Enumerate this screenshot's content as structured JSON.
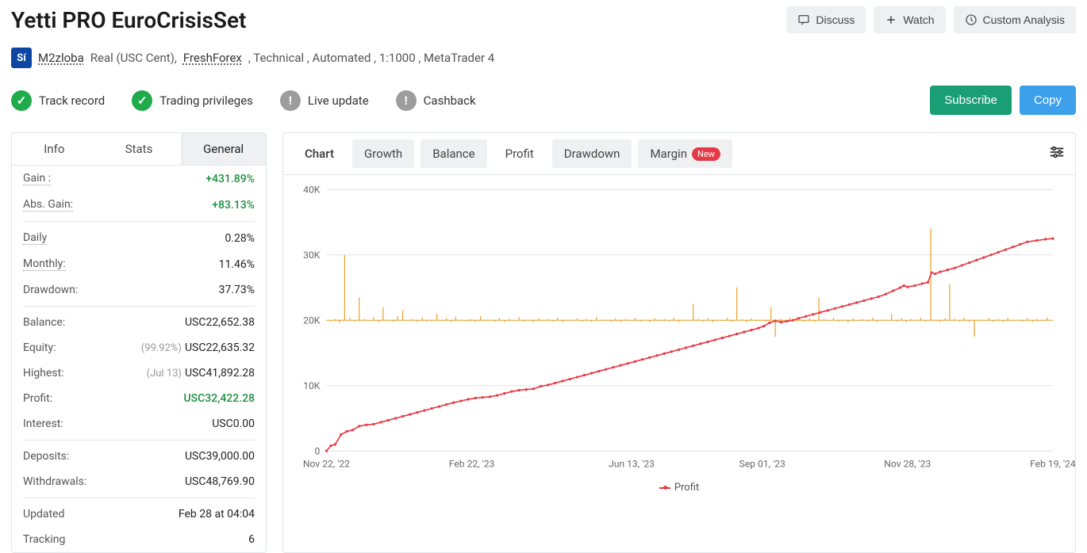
{
  "title": "Yetti PRO EuroCrisisSet",
  "header_buttons": {
    "discuss": "Discuss",
    "watch": "Watch",
    "custom": "Custom Analysis"
  },
  "meta": {
    "user": "M2zloba",
    "account_type": "Real (USC Cent),",
    "broker": "FreshForex",
    "tail": ", Technical , Automated , 1:1000 , MetaTrader 4"
  },
  "status": {
    "track": "Track record",
    "priv": "Trading privileges",
    "live": "Live update",
    "cash": "Cashback"
  },
  "actions": {
    "subscribe": "Subscribe",
    "copy": "Copy"
  },
  "side_tabs": {
    "info": "Info",
    "stats": "Stats",
    "general": "General"
  },
  "stats": {
    "gain_l": "Gain :",
    "gain_v": "+431.89%",
    "abs_l": "Abs. Gain:",
    "abs_v": "+83.13%",
    "daily_l": "Daily",
    "daily_v": "0.28%",
    "monthly_l": "Monthly:",
    "monthly_v": "11.46%",
    "dd_l": "Drawdown:",
    "dd_v": "37.73%",
    "bal_l": "Balance:",
    "bal_v": "USC22,652.38",
    "eq_l": "Equity:",
    "eq_note": "(99.92%)",
    "eq_v": "USC22,635.32",
    "hi_l": "Highest:",
    "hi_note": "(Jul 13)",
    "hi_v": "USC41,892.28",
    "profit_l": "Profit:",
    "profit_v": "USC32,422.28",
    "int_l": "Interest:",
    "int_v": "USC0.00",
    "dep_l": "Deposits:",
    "dep_v": "USC39,000.00",
    "wd_l": "Withdrawals:",
    "wd_v": "USC48,769.90",
    "upd_l": "Updated",
    "upd_v": "Feb 28 at 04:04",
    "trk_l": "Tracking",
    "trk_v": "6"
  },
  "chart_tabs": {
    "chart": "Chart",
    "growth": "Growth",
    "balance": "Balance",
    "profit": "Profit",
    "drawdown": "Drawdown",
    "margin": "Margin",
    "new": "New"
  },
  "chart": {
    "ylim": [
      0,
      40000
    ],
    "ytick_step": 10000,
    "yticks": [
      "0",
      "10K",
      "20K",
      "30K",
      "40K"
    ],
    "xticks": [
      "Nov 22, '22",
      "Feb 22, '23",
      "Jun 13, '23",
      "Sep 01, '23",
      "Nov 28, '23",
      "Feb 19, '24"
    ],
    "x_positions": [
      0,
      0.2,
      0.42,
      0.6,
      0.8,
      1.0
    ],
    "profit_color": "#e63946",
    "equity_color": "#e9a227",
    "grid_color": "#e1e1e1",
    "axis_color": "#888",
    "background": "#ffffff",
    "legend_label": "Profit",
    "profit_series": [
      [
        0.0,
        0
      ],
      [
        0.006,
        800
      ],
      [
        0.012,
        1000
      ],
      [
        0.02,
        2500
      ],
      [
        0.028,
        3000
      ],
      [
        0.036,
        3200
      ],
      [
        0.045,
        3800
      ],
      [
        0.055,
        4000
      ],
      [
        0.065,
        4100
      ],
      [
        0.075,
        4400
      ],
      [
        0.085,
        4700
      ],
      [
        0.095,
        5000
      ],
      [
        0.105,
        5300
      ],
      [
        0.115,
        5600
      ],
      [
        0.125,
        5900
      ],
      [
        0.135,
        6200
      ],
      [
        0.145,
        6500
      ],
      [
        0.155,
        6800
      ],
      [
        0.165,
        7100
      ],
      [
        0.175,
        7400
      ],
      [
        0.185,
        7650
      ],
      [
        0.195,
        7900
      ],
      [
        0.205,
        8100
      ],
      [
        0.215,
        8200
      ],
      [
        0.225,
        8300
      ],
      [
        0.235,
        8500
      ],
      [
        0.245,
        8800
      ],
      [
        0.255,
        9100
      ],
      [
        0.265,
        9300
      ],
      [
        0.275,
        9400
      ],
      [
        0.285,
        9500
      ],
      [
        0.295,
        9900
      ],
      [
        0.305,
        10100
      ],
      [
        0.315,
        10400
      ],
      [
        0.325,
        10700
      ],
      [
        0.335,
        11000
      ],
      [
        0.345,
        11300
      ],
      [
        0.355,
        11600
      ],
      [
        0.365,
        11900
      ],
      [
        0.375,
        12200
      ],
      [
        0.385,
        12500
      ],
      [
        0.395,
        12800
      ],
      [
        0.405,
        13100
      ],
      [
        0.415,
        13400
      ],
      [
        0.425,
        13700
      ],
      [
        0.435,
        14000
      ],
      [
        0.445,
        14300
      ],
      [
        0.455,
        14600
      ],
      [
        0.465,
        14900
      ],
      [
        0.475,
        15200
      ],
      [
        0.485,
        15500
      ],
      [
        0.495,
        15800
      ],
      [
        0.505,
        16100
      ],
      [
        0.515,
        16400
      ],
      [
        0.525,
        16700
      ],
      [
        0.535,
        17000
      ],
      [
        0.545,
        17300
      ],
      [
        0.555,
        17600
      ],
      [
        0.565,
        17900
      ],
      [
        0.575,
        18200
      ],
      [
        0.585,
        18500
      ],
      [
        0.595,
        18800
      ],
      [
        0.602,
        19100
      ],
      [
        0.61,
        19600
      ],
      [
        0.618,
        19900
      ],
      [
        0.626,
        19700
      ],
      [
        0.634,
        19850
      ],
      [
        0.642,
        20000
      ],
      [
        0.65,
        20300
      ],
      [
        0.66,
        20600
      ],
      [
        0.67,
        20900
      ],
      [
        0.68,
        21200
      ],
      [
        0.69,
        21500
      ],
      [
        0.7,
        21800
      ],
      [
        0.71,
        22100
      ],
      [
        0.72,
        22400
      ],
      [
        0.73,
        22700
      ],
      [
        0.74,
        23000
      ],
      [
        0.75,
        23300
      ],
      [
        0.76,
        23600
      ],
      [
        0.77,
        24000
      ],
      [
        0.78,
        24500
      ],
      [
        0.79,
        25000
      ],
      [
        0.795,
        25300
      ],
      [
        0.8,
        25100
      ],
      [
        0.81,
        25300
      ],
      [
        0.82,
        25600
      ],
      [
        0.828,
        25800
      ],
      [
        0.833,
        27300
      ],
      [
        0.838,
        27100
      ],
      [
        0.845,
        27400
      ],
      [
        0.855,
        27700
      ],
      [
        0.865,
        28000
      ],
      [
        0.875,
        28400
      ],
      [
        0.885,
        28800
      ],
      [
        0.895,
        29200
      ],
      [
        0.905,
        29600
      ],
      [
        0.915,
        30000
      ],
      [
        0.925,
        30400
      ],
      [
        0.935,
        30800
      ],
      [
        0.945,
        31200
      ],
      [
        0.955,
        31600
      ],
      [
        0.965,
        32000
      ],
      [
        0.978,
        32200
      ],
      [
        0.99,
        32400
      ],
      [
        1.0,
        32500
      ]
    ],
    "equity_bars": [
      [
        0.005,
        19800
      ],
      [
        0.012,
        20200
      ],
      [
        0.018,
        19600
      ],
      [
        0.025,
        30000
      ],
      [
        0.032,
        20400
      ],
      [
        0.038,
        19800
      ],
      [
        0.045,
        23500
      ],
      [
        0.052,
        20200
      ],
      [
        0.058,
        19900
      ],
      [
        0.065,
        20500
      ],
      [
        0.072,
        19700
      ],
      [
        0.078,
        22000
      ],
      [
        0.085,
        20100
      ],
      [
        0.092,
        19800
      ],
      [
        0.098,
        20600
      ],
      [
        0.105,
        21500
      ],
      [
        0.112,
        19900
      ],
      [
        0.118,
        20200
      ],
      [
        0.125,
        19700
      ],
      [
        0.132,
        20400
      ],
      [
        0.138,
        19800
      ],
      [
        0.145,
        20100
      ],
      [
        0.152,
        21000
      ],
      [
        0.158,
        19900
      ],
      [
        0.165,
        20300
      ],
      [
        0.172,
        19700
      ],
      [
        0.178,
        20500
      ],
      [
        0.185,
        20000
      ],
      [
        0.192,
        19800
      ],
      [
        0.198,
        20200
      ],
      [
        0.205,
        19700
      ],
      [
        0.212,
        20600
      ],
      [
        0.218,
        19900
      ],
      [
        0.225,
        20100
      ],
      [
        0.232,
        19800
      ],
      [
        0.238,
        20400
      ],
      [
        0.245,
        19700
      ],
      [
        0.252,
        20200
      ],
      [
        0.258,
        20000
      ],
      [
        0.265,
        20500
      ],
      [
        0.272,
        19800
      ],
      [
        0.278,
        20100
      ],
      [
        0.285,
        19700
      ],
      [
        0.292,
        20300
      ],
      [
        0.298,
        19900
      ],
      [
        0.305,
        20200
      ],
      [
        0.312,
        19800
      ],
      [
        0.318,
        20400
      ],
      [
        0.325,
        19700
      ],
      [
        0.332,
        20100
      ],
      [
        0.338,
        20000
      ],
      [
        0.345,
        20300
      ],
      [
        0.352,
        19800
      ],
      [
        0.358,
        20200
      ],
      [
        0.365,
        19700
      ],
      [
        0.372,
        20500
      ],
      [
        0.378,
        19900
      ],
      [
        0.385,
        20100
      ],
      [
        0.392,
        19800
      ],
      [
        0.398,
        20300
      ],
      [
        0.405,
        19700
      ],
      [
        0.412,
        20200
      ],
      [
        0.418,
        20000
      ],
      [
        0.425,
        20400
      ],
      [
        0.432,
        19800
      ],
      [
        0.438,
        20100
      ],
      [
        0.445,
        19700
      ],
      [
        0.452,
        20300
      ],
      [
        0.458,
        19900
      ],
      [
        0.465,
        20200
      ],
      [
        0.472,
        19800
      ],
      [
        0.478,
        20400
      ],
      [
        0.485,
        19700
      ],
      [
        0.492,
        20100
      ],
      [
        0.498,
        20000
      ],
      [
        0.505,
        22500
      ],
      [
        0.512,
        20200
      ],
      [
        0.518,
        19800
      ],
      [
        0.525,
        20300
      ],
      [
        0.532,
        19700
      ],
      [
        0.538,
        20100
      ],
      [
        0.545,
        19900
      ],
      [
        0.552,
        20400
      ],
      [
        0.558,
        19800
      ],
      [
        0.565,
        25000
      ],
      [
        0.572,
        20200
      ],
      [
        0.578,
        19700
      ],
      [
        0.585,
        20300
      ],
      [
        0.592,
        19900
      ],
      [
        0.598,
        20100
      ],
      [
        0.605,
        19800
      ],
      [
        0.612,
        22000
      ],
      [
        0.618,
        17500
      ],
      [
        0.625,
        20200
      ],
      [
        0.632,
        19700
      ],
      [
        0.638,
        20400
      ],
      [
        0.645,
        19900
      ],
      [
        0.652,
        20100
      ],
      [
        0.658,
        19800
      ],
      [
        0.665,
        20300
      ],
      [
        0.672,
        19700
      ],
      [
        0.678,
        23500
      ],
      [
        0.685,
        20200
      ],
      [
        0.692,
        19900
      ],
      [
        0.698,
        20400
      ],
      [
        0.705,
        19800
      ],
      [
        0.712,
        20100
      ],
      [
        0.718,
        19700
      ],
      [
        0.725,
        20300
      ],
      [
        0.732,
        19900
      ],
      [
        0.738,
        20200
      ],
      [
        0.745,
        19800
      ],
      [
        0.752,
        20400
      ],
      [
        0.758,
        19700
      ],
      [
        0.765,
        20100
      ],
      [
        0.772,
        19900
      ],
      [
        0.778,
        21000
      ],
      [
        0.785,
        19800
      ],
      [
        0.792,
        20300
      ],
      [
        0.798,
        19700
      ],
      [
        0.805,
        20200
      ],
      [
        0.812,
        19900
      ],
      [
        0.818,
        20400
      ],
      [
        0.825,
        19800
      ],
      [
        0.832,
        34000
      ],
      [
        0.838,
        20100
      ],
      [
        0.845,
        19700
      ],
      [
        0.852,
        20300
      ],
      [
        0.858,
        25500
      ],
      [
        0.865,
        20200
      ],
      [
        0.872,
        19800
      ],
      [
        0.878,
        20400
      ],
      [
        0.885,
        19700
      ],
      [
        0.892,
        17500
      ],
      [
        0.898,
        20100
      ],
      [
        0.905,
        19900
      ],
      [
        0.912,
        20300
      ],
      [
        0.918,
        19800
      ],
      [
        0.925,
        20200
      ],
      [
        0.932,
        19700
      ],
      [
        0.938,
        20400
      ],
      [
        0.945,
        19900
      ],
      [
        0.952,
        20100
      ],
      [
        0.958,
        19800
      ],
      [
        0.965,
        20300
      ],
      [
        0.972,
        19700
      ],
      [
        0.978,
        20200
      ],
      [
        0.985,
        19900
      ],
      [
        0.992,
        20400
      ]
    ]
  }
}
